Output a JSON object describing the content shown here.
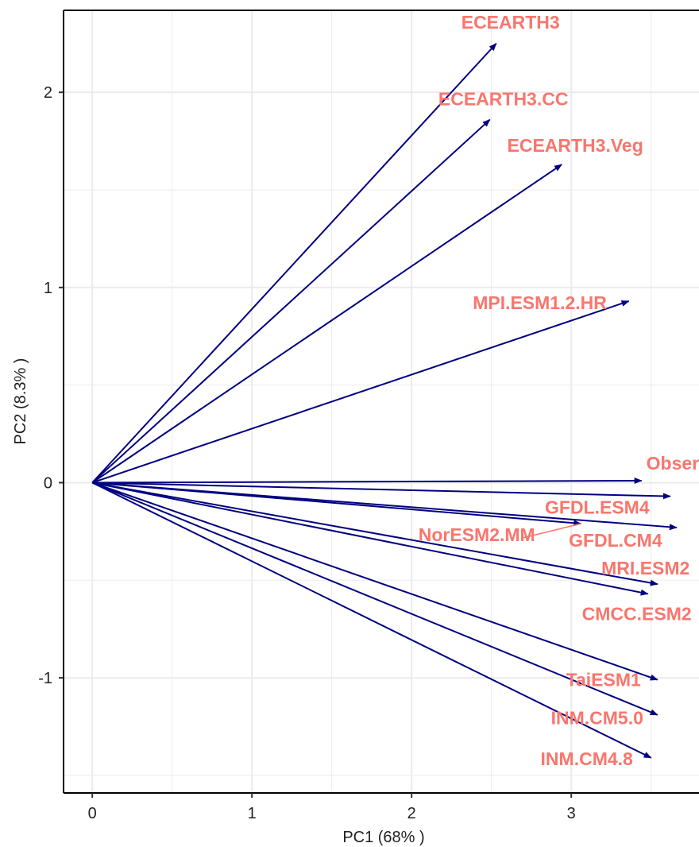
{
  "chart_data": {
    "type": "scatter",
    "subtype": "pca-loading-arrows",
    "xlabel": "PC1 (68% )",
    "ylabel": "PC2 (8.3% )",
    "xlim": [
      -0.18,
      3.8
    ],
    "ylim": [
      -1.59,
      2.42
    ],
    "x_ticks": [
      0,
      1,
      2,
      3
    ],
    "x_tick_labels": [
      "0",
      "1",
      "2",
      "3"
    ],
    "y_ticks": [
      -1,
      0,
      1,
      2
    ],
    "y_tick_labels": [
      "-1",
      "0",
      "1",
      "2"
    ],
    "grid": true,
    "origin": [
      0,
      0
    ],
    "arrow_color": "#000080",
    "label_color": "#f8766d",
    "vectors": [
      {
        "name": "ECEARTH3",
        "x": 2.53,
        "y": 2.25
      },
      {
        "name": "ECEARTH3.CC",
        "x": 2.49,
        "y": 1.86
      },
      {
        "name": "ECEARTH3.Veg",
        "x": 2.94,
        "y": 1.63
      },
      {
        "name": "MPI.ESM1.2.HR",
        "x": 3.36,
        "y": 0.93
      },
      {
        "name": "Observed",
        "x": 3.44,
        "y": 0.01
      },
      {
        "name": "GFDL.ESM4",
        "x": 3.62,
        "y": -0.07
      },
      {
        "name": "GFDL.CM4",
        "x": 3.66,
        "y": -0.23
      },
      {
        "name": "NorESM2.MM",
        "x": 3.06,
        "y": -0.21
      },
      {
        "name": "MRI.ESM2",
        "x": 3.54,
        "y": -0.52
      },
      {
        "name": "CMCC.ESM2",
        "x": 3.48,
        "y": -0.57
      },
      {
        "name": "TaiESM1",
        "x": 3.54,
        "y": -1.01
      },
      {
        "name": "INM.CM5.0",
        "x": 3.54,
        "y": -1.19
      },
      {
        "name": "INM.CM4.8",
        "x": 3.5,
        "y": -1.41
      }
    ]
  }
}
